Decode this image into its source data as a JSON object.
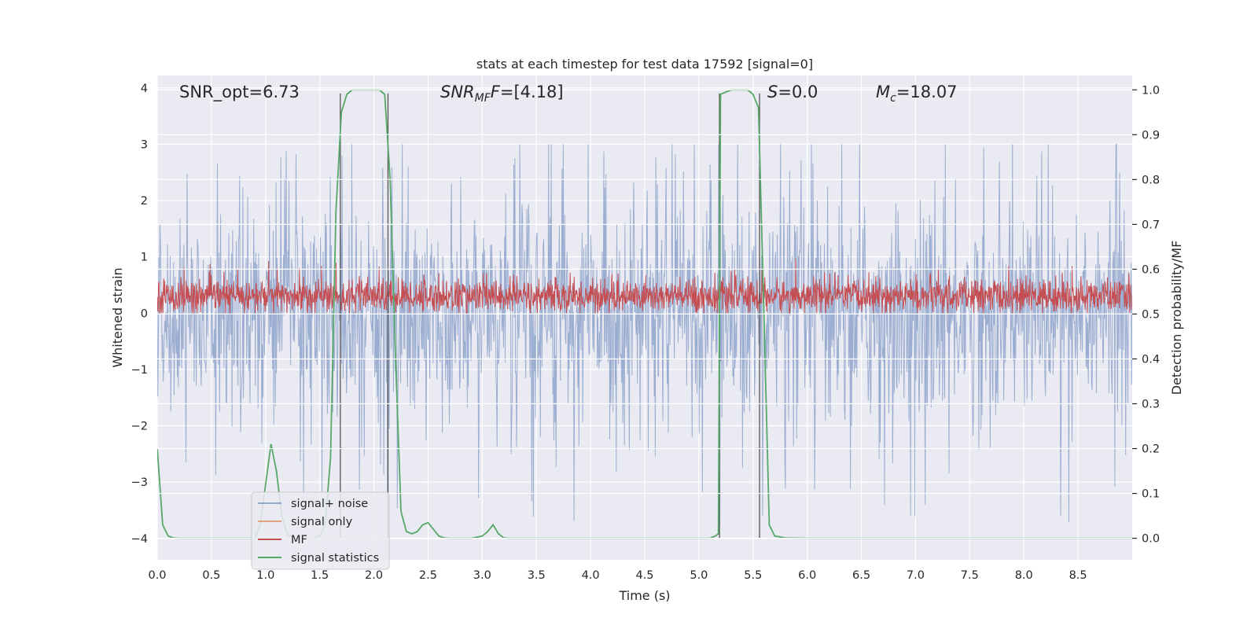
{
  "chart_data": {
    "type": "line",
    "title": "stats at each timestep for test data 17592 [signal=0]",
    "xlabel": "Time (s)",
    "ylabel_left": "Whitened strain",
    "ylabel_right": "Detection probability/MF",
    "xlim": [
      0.0,
      9.0
    ],
    "ylim_left": [
      -4.38,
      4.22
    ],
    "ylim_right": [
      -0.048,
      1.032
    ],
    "x_ticks": [
      0.0,
      0.5,
      1.0,
      1.5,
      2.0,
      2.5,
      3.0,
      3.5,
      4.0,
      4.5,
      5.0,
      5.5,
      6.0,
      6.5,
      7.0,
      7.5,
      8.0,
      8.5
    ],
    "x_tick_labels": [
      "0.0",
      "0.5",
      "1.0",
      "1.5",
      "2.0",
      "2.5",
      "3.0",
      "3.5",
      "4.0",
      "4.5",
      "5.0",
      "5.5",
      "6.0",
      "6.5",
      "7.0",
      "7.5",
      "8.0",
      "8.5"
    ],
    "y_left_ticks": [
      4,
      3,
      2,
      1,
      0,
      -1,
      -2,
      -3,
      -4
    ],
    "y_left_tick_labels": [
      "4",
      "3",
      "2",
      "1",
      "0",
      "−1",
      "−2",
      "−3",
      "−4"
    ],
    "y_right_ticks": [
      1.0,
      0.9,
      0.8,
      0.7,
      0.6,
      0.5,
      0.4,
      0.3,
      0.2,
      0.1,
      0.0
    ],
    "y_right_tick_labels": [
      "1.0",
      "0.9",
      "0.8",
      "0.7",
      "0.6",
      "0.5",
      "0.4",
      "0.3",
      "0.2",
      "0.1",
      "0.0"
    ],
    "annotations": {
      "snr_opt": "SNR_opt=6.73",
      "snr_mf_main": "SNR",
      "snr_mf_sub": "MF",
      "snr_mf_value": "=[4.18]",
      "s_main": "S",
      "s_value": "=0.0",
      "mc_main": "M",
      "mc_sub": "c",
      "mc_value": "=18.07"
    },
    "legend": {
      "placement": "lower-left",
      "entries": [
        "signal+ noise",
        "signal only",
        "MF",
        "signal statistics"
      ]
    },
    "series": [
      {
        "name": "signal+ noise",
        "axis": "left",
        "color": "#4c72b0",
        "kind": "noise",
        "envelope_min": -4.0,
        "envelope_max": 3.0,
        "description_values": {
          "typical_range": [
            -2.4,
            2.4
          ],
          "spike_range": [
            -4.0,
            3.0
          ]
        }
      },
      {
        "name": "signal only",
        "axis": "left",
        "color": "#dd8452",
        "values": []
      },
      {
        "name": "MF",
        "axis": "left",
        "color": "#c44e52",
        "kind": "noise",
        "range": [
          0.0,
          1.0
        ]
      },
      {
        "name": "signal statistics",
        "axis": "right",
        "color": "#55a868",
        "x": [
          0.0,
          0.05,
          0.1,
          0.15,
          0.2,
          0.3,
          0.4,
          0.5,
          0.6,
          0.7,
          0.8,
          0.85,
          0.9,
          0.95,
          1.0,
          1.05,
          1.1,
          1.15,
          1.2,
          1.25,
          1.3,
          1.35,
          1.4,
          1.45,
          1.5,
          1.55,
          1.6,
          1.65,
          1.7,
          1.75,
          1.8,
          1.9,
          2.0,
          2.05,
          2.1,
          2.15,
          2.2,
          2.25,
          2.3,
          2.35,
          2.4,
          2.45,
          2.5,
          2.55,
          2.6,
          2.65,
          2.7,
          2.75,
          2.8,
          2.9,
          3.0,
          3.05,
          3.1,
          3.15,
          3.2,
          3.25,
          3.3,
          3.5,
          4.0,
          4.5,
          5.0,
          5.1,
          5.15,
          5.18,
          5.2,
          5.25,
          5.3,
          5.35,
          5.4,
          5.45,
          5.5,
          5.55,
          5.6,
          5.65,
          5.7,
          5.8,
          6.0,
          7.0,
          8.0,
          9.0
        ],
        "values": [
          0.2,
          0.03,
          0.005,
          0.001,
          0.0,
          0.0,
          0.0,
          0.0,
          0.0,
          0.0,
          0.0,
          0.0,
          0.0,
          0.03,
          0.12,
          0.21,
          0.15,
          0.05,
          0.01,
          0.0,
          0.0,
          0.0,
          0.0,
          0.001,
          0.005,
          0.03,
          0.18,
          0.73,
          0.95,
          0.99,
          1.0,
          1.0,
          1.0,
          1.0,
          0.99,
          0.8,
          0.4,
          0.06,
          0.015,
          0.01,
          0.015,
          0.03,
          0.035,
          0.02,
          0.005,
          0.001,
          0.0,
          0.0,
          0.0,
          0.0,
          0.005,
          0.015,
          0.03,
          0.01,
          0.001,
          0.0,
          0.0,
          0.0,
          0.0,
          0.0,
          0.0,
          0.0,
          0.005,
          0.01,
          0.99,
          0.995,
          1.0,
          1.0,
          1.0,
          1.0,
          0.99,
          0.96,
          0.5,
          0.03,
          0.005,
          0.001,
          0.0,
          0.0,
          0.0,
          0.0
        ]
      }
    ],
    "vertical_lines_x": [
      1.69,
      2.13,
      5.19,
      5.56
    ],
    "vertical_lines_range_left": [
      -4.0,
      3.9
    ]
  }
}
